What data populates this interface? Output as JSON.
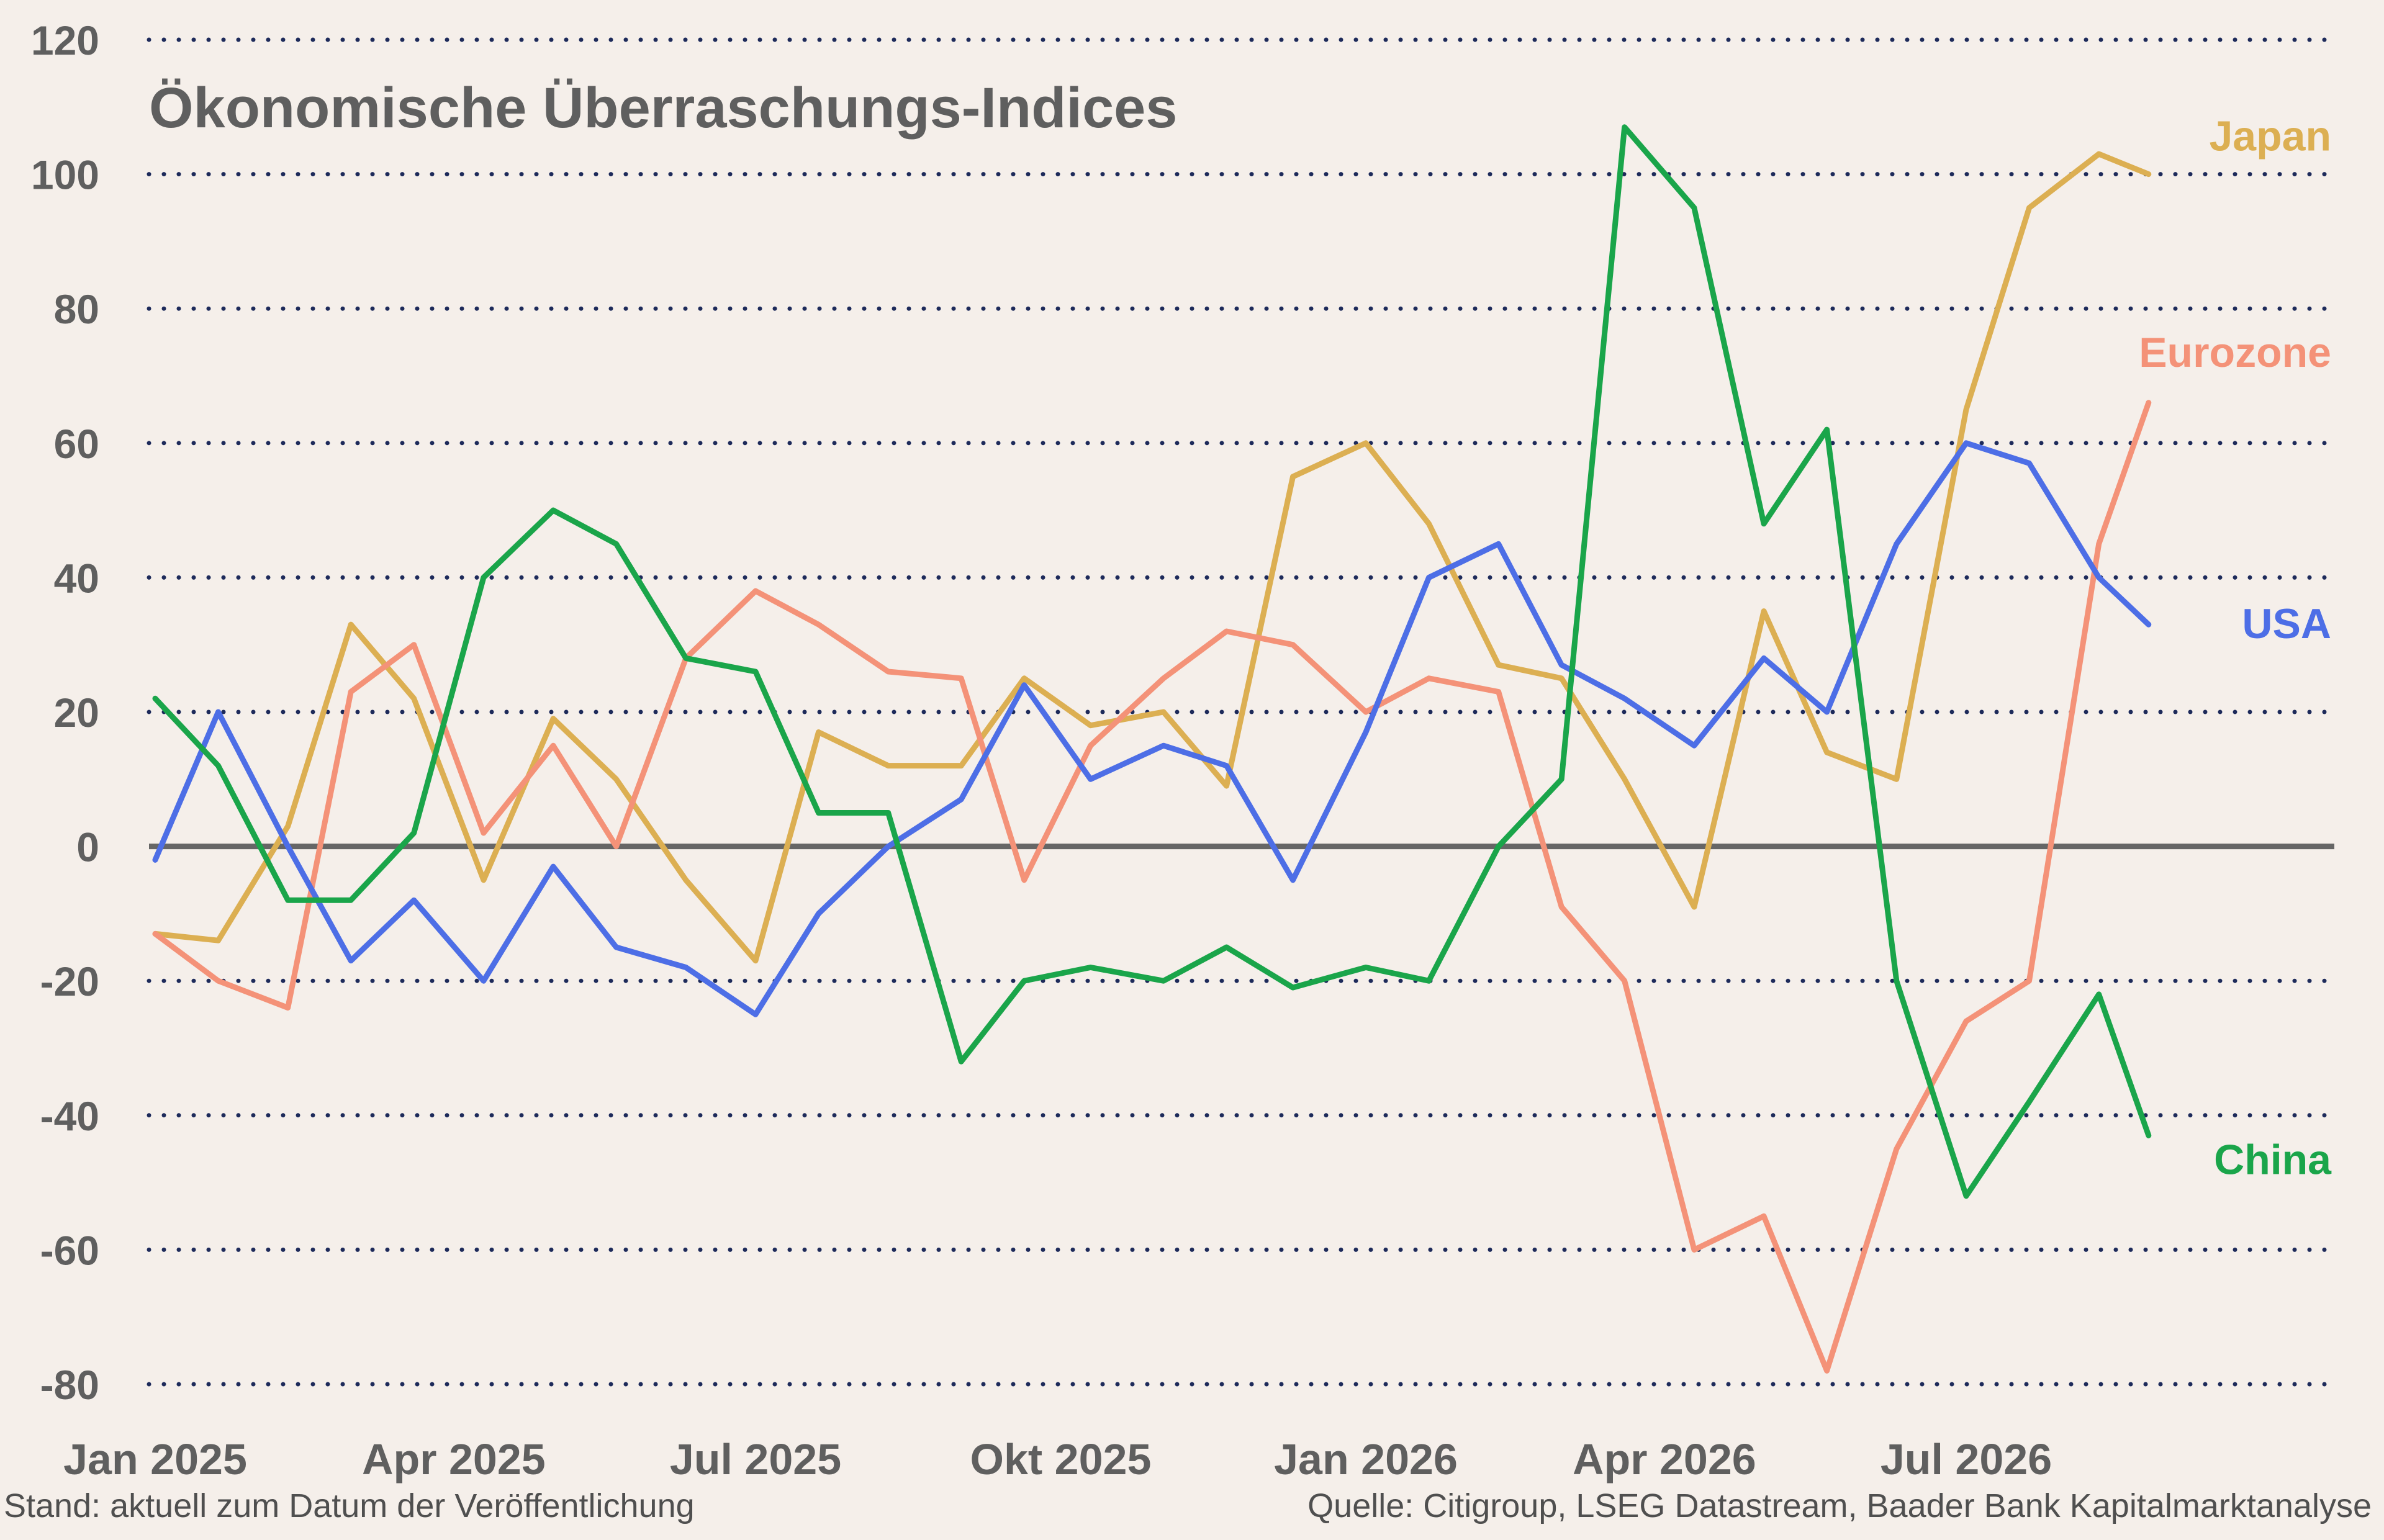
{
  "chart_data": {
    "type": "line",
    "title": "Ökonomische Überraschungs-Indices",
    "xlabel": "",
    "ylabel": "",
    "ylim": [
      -80,
      120
    ],
    "yticks": [
      120,
      100,
      80,
      60,
      40,
      20,
      0,
      -20,
      -40,
      -60,
      -80
    ],
    "x_ticks": [
      "Jan 2025",
      "Apr 2025",
      "Jul 2025",
      "Okt 2025",
      "Jan 2026",
      "Apr 2026",
      "Jul 2026"
    ],
    "x_range": [
      "2025-01-01",
      "2026-10-20"
    ],
    "grid": "horizontal dotted",
    "legend": "labels at right end of lines",
    "x": [
      "2025-01-01",
      "2025-01-20",
      "2025-02-10",
      "2025-03-01",
      "2025-03-20",
      "2025-04-10",
      "2025-05-01",
      "2025-05-20",
      "2025-06-10",
      "2025-07-01",
      "2025-07-20",
      "2025-08-10",
      "2025-09-01",
      "2025-09-20",
      "2025-10-10",
      "2025-11-01",
      "2025-11-20",
      "2025-12-10",
      "2026-01-01",
      "2026-01-20",
      "2026-02-10",
      "2026-03-01",
      "2026-03-20",
      "2026-04-10",
      "2026-05-01",
      "2026-05-20",
      "2026-06-10",
      "2026-07-01",
      "2026-07-20",
      "2026-08-10",
      "2026-08-25"
    ],
    "series": [
      {
        "name": "Japan",
        "color": "#dcaf52",
        "values": [
          -13,
          -14,
          3,
          33,
          22,
          -5,
          19,
          10,
          -5,
          -17,
          17,
          12,
          12,
          25,
          18,
          20,
          9,
          55,
          60,
          48,
          27,
          25,
          10,
          -9,
          35,
          14,
          10,
          65,
          95,
          103,
          100
        ]
      },
      {
        "name": "Eurozone",
        "color": "#f49278",
        "values": [
          -13,
          -20,
          -24,
          23,
          30,
          2,
          15,
          0,
          28,
          38,
          33,
          26,
          25,
          -5,
          15,
          25,
          32,
          30,
          20,
          25,
          23,
          -9,
          -20,
          -60,
          -55,
          -78,
          -45,
          -26,
          -20,
          45,
          66
        ]
      },
      {
        "name": "USA",
        "color": "#4d6ee6",
        "values": [
          -2,
          20,
          0,
          -17,
          -8,
          -20,
          -3,
          -15,
          -18,
          -25,
          -10,
          0,
          7,
          24,
          10,
          15,
          12,
          -5,
          17,
          40,
          45,
          27,
          22,
          15,
          28,
          20,
          45,
          60,
          57,
          40,
          33
        ]
      },
      {
        "name": "China",
        "color": "#1aa54a",
        "values": [
          22,
          12,
          -8,
          -8,
          2,
          40,
          50,
          45,
          28,
          26,
          5,
          5,
          -32,
          -20,
          -18,
          -20,
          -15,
          -21,
          -18,
          -20,
          0,
          10,
          107,
          95,
          48,
          62,
          -20,
          -52,
          -38,
          -22,
          -43
        ]
      }
    ]
  },
  "footer": {
    "left": "Stand: aktuell zum Datum der Veröffentlichung",
    "right": "Quelle: Citigroup, LSEG Datastream, Baader Bank Kapitalmarktanalyse"
  }
}
